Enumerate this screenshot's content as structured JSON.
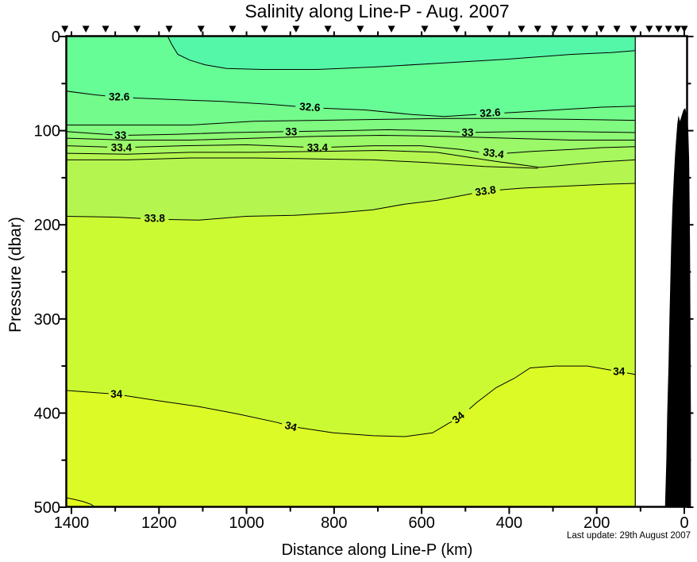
{
  "title": "Salinity along Line-P - Aug. 2007",
  "footnote": "Last update: 29th August 2007",
  "chart_data": {
    "type": "filled_contour_section",
    "title": "Salinity along Line-P - Aug. 2007",
    "x": {
      "label": "Distance along Line-P (km)",
      "unit": "km",
      "min": 0,
      "max": 1400,
      "reversed": true,
      "major": [
        {
          "km": 1400,
          "label": "1400"
        },
        {
          "km": 1200,
          "label": "1200"
        },
        {
          "km": 1000,
          "label": "1000"
        },
        {
          "km": 800,
          "label": "800"
        },
        {
          "km": 600,
          "label": "600"
        },
        {
          "km": 400,
          "label": "400"
        },
        {
          "km": 200,
          "label": "200"
        },
        {
          "km": 0,
          "label": "0"
        }
      ],
      "minor": [
        1300,
        1100,
        900,
        700,
        500,
        300,
        100
      ]
    },
    "y": {
      "label": "Pressure (dbar)",
      "unit": "dbar",
      "min": 0,
      "max": 500,
      "inverted": true,
      "major": [
        {
          "p": 0,
          "label": "0"
        },
        {
          "p": 100,
          "label": "100"
        },
        {
          "p": 200,
          "label": "200"
        },
        {
          "p": 300,
          "label": "300"
        },
        {
          "p": 400,
          "label": "400"
        },
        {
          "p": 500,
          "label": "500"
        }
      ],
      "minor": [
        50,
        150,
        250,
        350,
        450
      ]
    },
    "labeled_levels": [
      32.6,
      33,
      33.4,
      33.8,
      34
    ],
    "contour_interval": 0.2,
    "base_fill": "#66FC96",
    "contours": [
      {
        "level": 32.4,
        "label": null,
        "fill_above": "#54F7A8",
        "fill_below": null,
        "points": [
          [
            1180,
            0
          ],
          [
            1170,
            9
          ],
          [
            1157,
            19
          ],
          [
            1130,
            25
          ],
          [
            1095,
            30
          ],
          [
            1046,
            34
          ],
          [
            965,
            35
          ],
          [
            838,
            35
          ],
          [
            693,
            32
          ],
          [
            548,
            28
          ],
          [
            403,
            24
          ],
          [
            258,
            19
          ],
          [
            167,
            17
          ],
          [
            112,
            15
          ]
        ],
        "labels": []
      },
      {
        "level": 32.6,
        "label": "32.6",
        "fill_below": "#73FB8B",
        "points": [
          [
            1411,
            58
          ],
          [
            1346,
            62
          ],
          [
            1273,
            65
          ],
          [
            1164,
            67
          ],
          [
            1055,
            69
          ],
          [
            947,
            72
          ],
          [
            838,
            76
          ],
          [
            729,
            78
          ],
          [
            620,
            83
          ],
          [
            548,
            85
          ],
          [
            443,
            82
          ],
          [
            366,
            80
          ],
          [
            294,
            78
          ],
          [
            185,
            75
          ],
          [
            112,
            74
          ]
        ],
        "labels": [
          {
            "km": 1291,
            "p": 64,
            "angle": 0,
            "gap": 32
          },
          {
            "km": 856,
            "p": 75,
            "angle": 4,
            "gap": 32
          },
          {
            "km": 443,
            "p": 81,
            "angle": -4,
            "gap": 32
          }
        ]
      },
      {
        "level": 32.8,
        "label": null,
        "fill_below": "#80FA80",
        "points": [
          [
            1411,
            94
          ],
          [
            1273,
            94
          ],
          [
            1128,
            94
          ],
          [
            983,
            90
          ],
          [
            838,
            89
          ],
          [
            693,
            88
          ],
          [
            548,
            87
          ],
          [
            403,
            87
          ],
          [
            258,
            88
          ],
          [
            112,
            89
          ]
        ],
        "labels": []
      },
      {
        "level": 33,
        "label": "33",
        "fill_below": "#8DF974",
        "points": [
          [
            1411,
            101
          ],
          [
            1288,
            105
          ],
          [
            1164,
            104
          ],
          [
            1037,
            102
          ],
          [
            898,
            101
          ],
          [
            783,
            100
          ],
          [
            675,
            99
          ],
          [
            575,
            100
          ],
          [
            495,
            102
          ],
          [
            384,
            101
          ],
          [
            258,
            101
          ],
          [
            112,
            102
          ]
        ],
        "labels": [
          {
            "km": 1288,
            "p": 105,
            "angle": 0,
            "gap": 18
          },
          {
            "km": 898,
            "p": 101,
            "angle": 0,
            "gap": 18
          },
          {
            "km": 495,
            "p": 102,
            "angle": 0,
            "gap": 18
          }
        ]
      },
      {
        "level": 33.2,
        "label": null,
        "fill_below": "#9AF869",
        "points": [
          [
            1411,
            108
          ],
          [
            1273,
            110
          ],
          [
            1128,
            110
          ],
          [
            983,
            108
          ],
          [
            838,
            106
          ],
          [
            693,
            105
          ],
          [
            548,
            106
          ],
          [
            403,
            108
          ],
          [
            258,
            110
          ],
          [
            112,
            110
          ]
        ],
        "labels": []
      },
      {
        "level": 33.4,
        "label": "33.4",
        "fill_below": "#A7F75E",
        "points": [
          [
            1411,
            116
          ],
          [
            1286,
            118
          ],
          [
            1146,
            116
          ],
          [
            1001,
            115
          ],
          [
            838,
            118
          ],
          [
            711,
            116
          ],
          [
            602,
            116
          ],
          [
            511,
            120
          ],
          [
            437,
            125
          ],
          [
            348,
            122
          ],
          [
            258,
            120
          ],
          [
            185,
            118
          ],
          [
            112,
            117
          ]
        ],
        "labels": [
          {
            "km": 1286,
            "p": 118,
            "angle": 0,
            "gap": 32
          },
          {
            "km": 838,
            "p": 118,
            "angle": 0,
            "gap": 32
          },
          {
            "km": 437,
            "p": 124,
            "angle": 8,
            "gap": 32
          }
        ]
      },
      {
        "level": 33.6,
        "label": null,
        "fill_below": "#B4F64F",
        "points": [
          [
            1411,
            124
          ],
          [
            1273,
            125
          ],
          [
            1128,
            123
          ],
          [
            983,
            123
          ],
          [
            838,
            122
          ],
          [
            693,
            121
          ],
          [
            566,
            123
          ],
          [
            439,
            132
          ],
          [
            330,
            139
          ],
          [
            258,
            136
          ],
          [
            185,
            133
          ],
          [
            112,
            131
          ]
        ],
        "labels": []
      },
      {
        "level": 33.7,
        "label": null,
        "fill_below": null,
        "points": [
          [
            1411,
            131
          ],
          [
            1273,
            131
          ],
          [
            1128,
            129
          ],
          [
            983,
            129
          ],
          [
            838,
            130
          ],
          [
            711,
            131
          ],
          [
            584,
            134
          ],
          [
            457,
            138
          ],
          [
            334,
            140
          ]
        ],
        "labels": []
      },
      {
        "level": 33.8,
        "label": "33.8",
        "fill_below": "#CBFA33",
        "points": [
          [
            1411,
            191
          ],
          [
            1291,
            192
          ],
          [
            1210,
            194
          ],
          [
            1110,
            195
          ],
          [
            1001,
            191
          ],
          [
            892,
            190
          ],
          [
            783,
            187
          ],
          [
            711,
            184
          ],
          [
            638,
            178
          ],
          [
            566,
            174
          ],
          [
            453,
            164
          ],
          [
            366,
            161
          ],
          [
            276,
            159
          ],
          [
            185,
            157
          ],
          [
            112,
            156
          ]
        ],
        "labels": [
          {
            "km": 1210,
            "p": 193,
            "angle": 0,
            "gap": 32
          },
          {
            "km": 453,
            "p": 164,
            "angle": -8,
            "gap": 32
          }
        ]
      },
      {
        "level": 34,
        "label": "34",
        "fill_below": "#DCFB26",
        "points": [
          [
            1411,
            376
          ],
          [
            1297,
            380
          ],
          [
            1200,
            387
          ],
          [
            1110,
            393
          ],
          [
            1019,
            401
          ],
          [
            929,
            410
          ],
          [
            901,
            414
          ],
          [
            802,
            421
          ],
          [
            711,
            424
          ],
          [
            638,
            425
          ],
          [
            575,
            421
          ],
          [
            539,
            411
          ],
          [
            511,
            404
          ],
          [
            475,
            389
          ],
          [
            430,
            373
          ],
          [
            388,
            363
          ],
          [
            352,
            352
          ],
          [
            294,
            350
          ],
          [
            221,
            350
          ],
          [
            149,
            356
          ],
          [
            112,
            359
          ]
        ],
        "labels": [
          {
            "km": 1297,
            "p": 380,
            "angle": 0,
            "gap": 18
          },
          {
            "km": 901,
            "p": 414,
            "angle": 15,
            "gap": 18
          },
          {
            "km": 511,
            "p": 404,
            "angle": -40,
            "gap": 20
          },
          {
            "km": 149,
            "p": 356,
            "angle": 0,
            "gap": 18
          }
        ]
      },
      {
        "level": 34.2,
        "label": null,
        "fill_below": "#E4FC19",
        "points": [
          [
            1411,
            490
          ],
          [
            1391,
            492
          ],
          [
            1373,
            494
          ],
          [
            1355,
            497
          ],
          [
            1346,
            500
          ]
        ],
        "labels": []
      }
    ],
    "stations_km": [
      1415,
      1367,
      1322,
      1250,
      1177,
      1104,
      1032,
      959,
      887,
      814,
      740,
      669,
      593,
      520,
      444,
      372,
      335,
      297,
      261,
      227,
      190,
      154,
      116,
      80,
      58,
      36,
      15,
      0
    ],
    "data_right_edge_km": 112,
    "bathymetry": {
      "fill": "#000000",
      "points": [
        [
          -2,
          76
        ],
        [
          -7,
          86
        ],
        [
          -9,
          100
        ],
        [
          -11,
          130
        ],
        [
          -12,
          170
        ],
        [
          -13,
          220
        ],
        [
          -14,
          300
        ],
        [
          -15,
          400
        ],
        [
          -15,
          500
        ],
        [
          44,
          500
        ],
        [
          41,
          450
        ],
        [
          39,
          400
        ],
        [
          36,
          350
        ],
        [
          34,
          300
        ],
        [
          32,
          260
        ],
        [
          30,
          220
        ],
        [
          27,
          180
        ],
        [
          24,
          150
        ],
        [
          21,
          125
        ],
        [
          18,
          105
        ],
        [
          16,
          93
        ],
        [
          14,
          86
        ],
        [
          13,
          84
        ],
        [
          10,
          90
        ],
        [
          6,
          84
        ],
        [
          2,
          78
        ]
      ]
    }
  }
}
